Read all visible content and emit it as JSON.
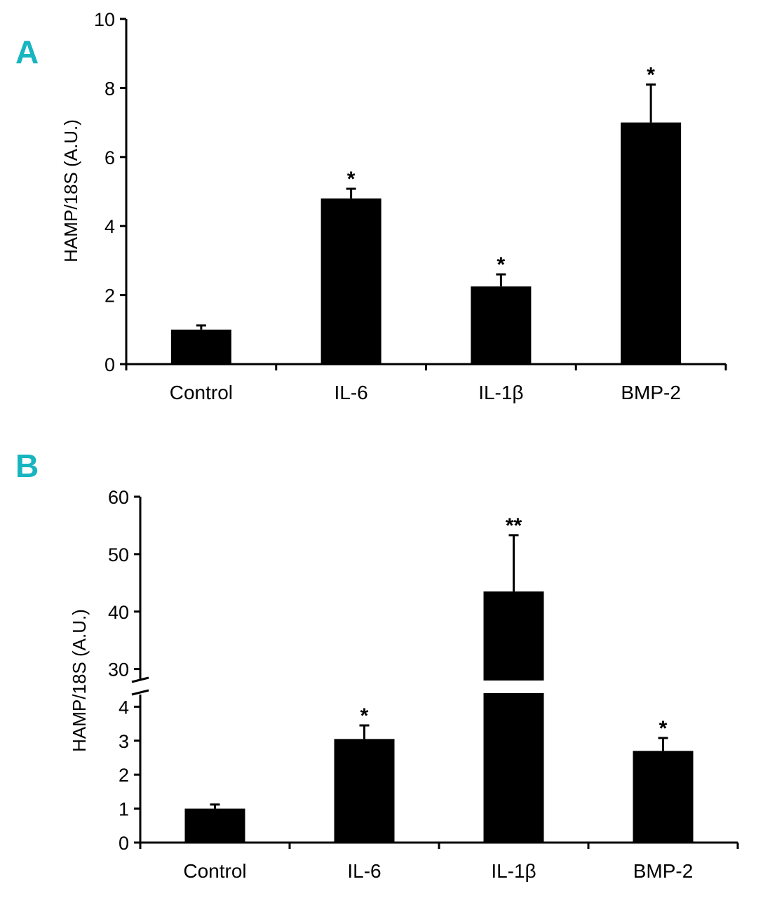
{
  "chart_data": [
    {
      "panel": "A",
      "type": "bar",
      "ylabel": "HAMP/18S (A.U.)",
      "xlabel": "",
      "ylim": [
        0,
        10
      ],
      "yticks": [
        0,
        2,
        4,
        6,
        8,
        10
      ],
      "categories": [
        "Control",
        "IL-6",
        "IL-1β",
        "BMP-2"
      ],
      "values": [
        1.0,
        4.8,
        2.25,
        7.0
      ],
      "errors": [
        0.12,
        0.28,
        0.35,
        1.1
      ],
      "significance": [
        "",
        "*",
        "*",
        "*"
      ]
    },
    {
      "panel": "B",
      "type": "bar",
      "ylabel": "HAMP/18S (A.U.)",
      "xlabel": "",
      "broken_axis": true,
      "ylim_lower": [
        0,
        4.4
      ],
      "ylim_upper": [
        28,
        60
      ],
      "yticks_lower": [
        0,
        1,
        2,
        3,
        4
      ],
      "yticks_upper": [
        30,
        40,
        50,
        60
      ],
      "categories": [
        "Control",
        "IL-6",
        "IL-1β",
        "BMP-2"
      ],
      "values": [
        1.0,
        3.05,
        43.5,
        2.7
      ],
      "errors": [
        0.12,
        0.4,
        9.8,
        0.38
      ],
      "significance": [
        "",
        "*",
        "**",
        "*"
      ]
    }
  ]
}
